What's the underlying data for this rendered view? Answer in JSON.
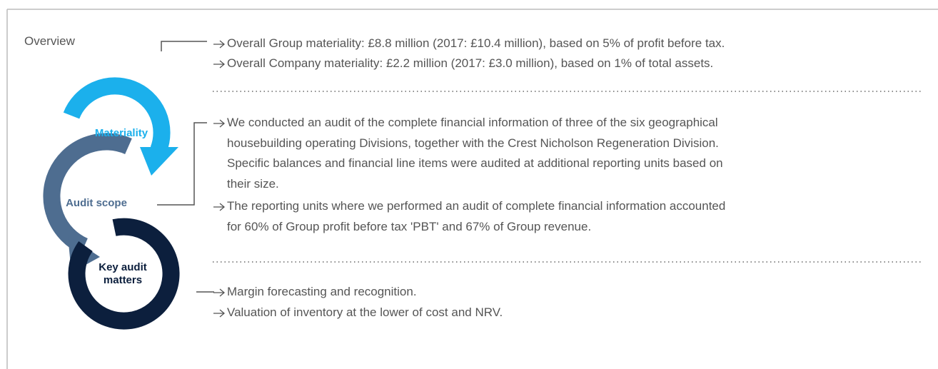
{
  "overview": "Overview",
  "sections": [
    {
      "label": "Materiality",
      "bullets": [
        "Overall Group materiality: £8.8 million (2017: £10.4 million), based on 5% of profit before tax.",
        "Overall Company materiality: £2.2 million (2017: £3.0 million), based on 1% of total assets."
      ]
    },
    {
      "label": "Audit scope",
      "bullets": [
        "We conducted an audit of the complete financial information of three of the six geographical housebuilding operating Divisions, together with the Crest Nicholson Regeneration Division. Specific balances and financial line items were audited at additional reporting units based on their size.",
        "The reporting units where we performed an audit of complete financial information accounted for 60% of Group profit before tax 'PBT' and 67% of Group revenue."
      ]
    },
    {
      "label": "Key audit matters",
      "bullets": [
        "Margin forecasting and recognition.",
        "Valuation of inventory at the lower of cost and NRV."
      ]
    }
  ]
}
